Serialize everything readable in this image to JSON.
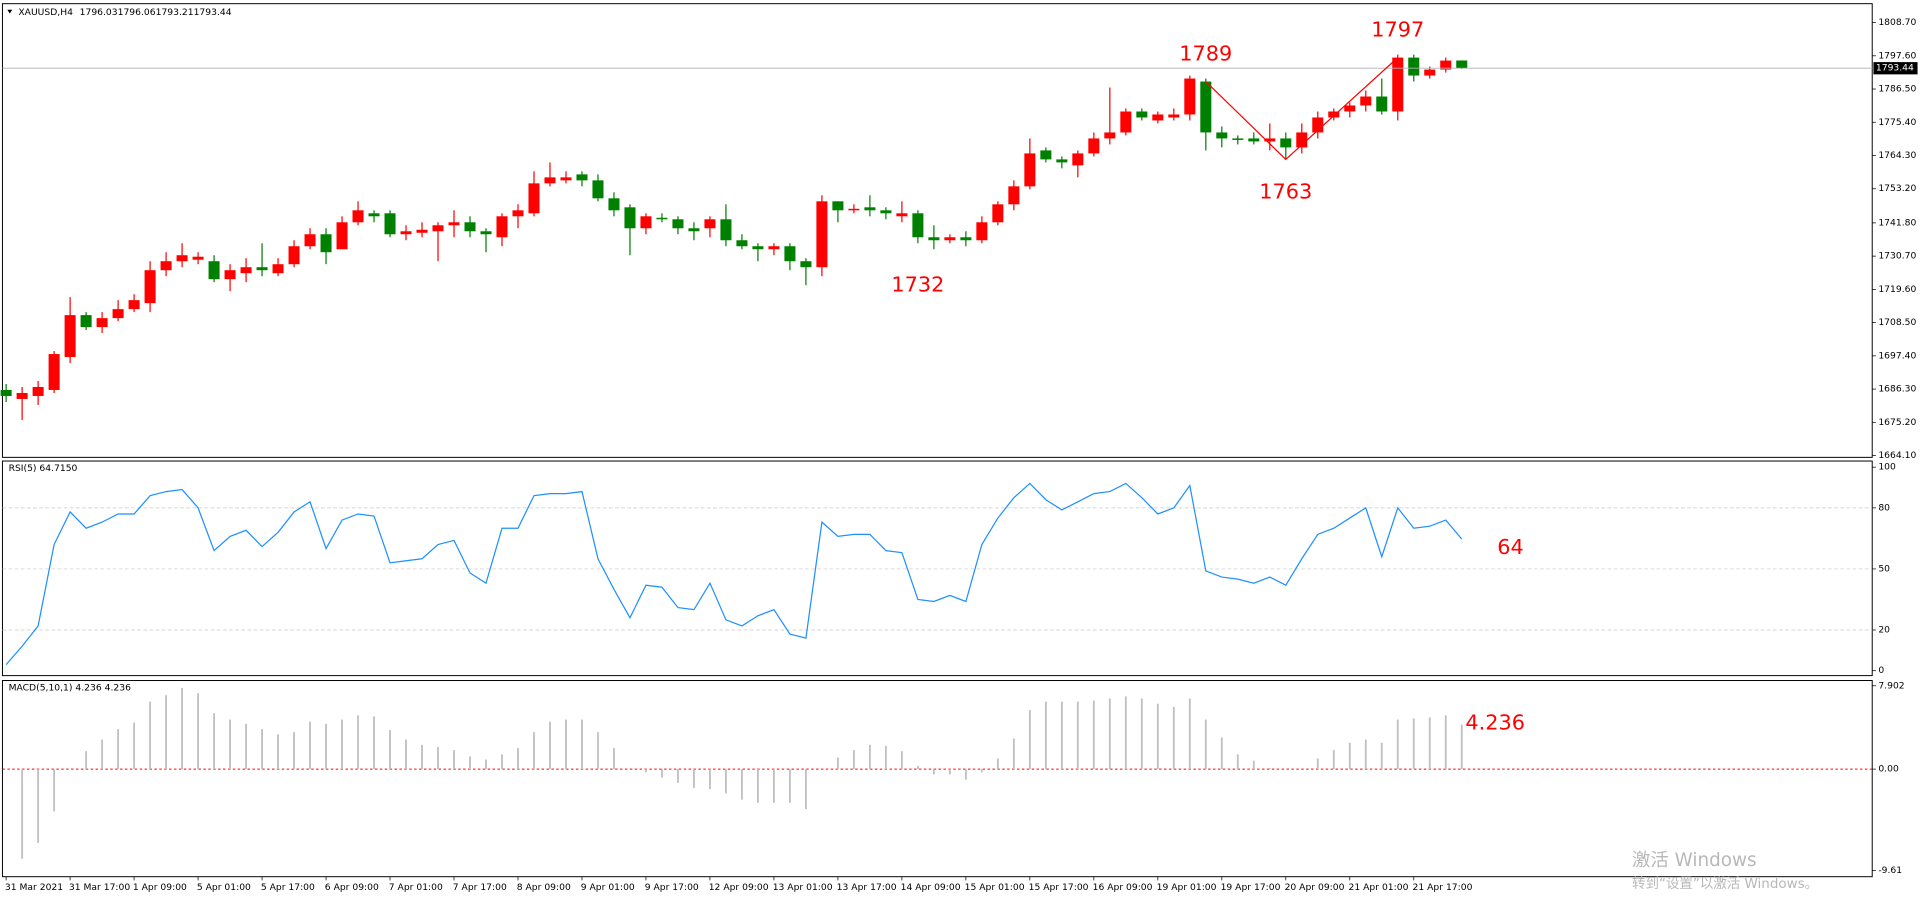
{
  "chart_data": [
    {
      "type": "candlestick",
      "title": "XAUUSD,H4",
      "up_color": "#ff0000",
      "down_color": "#008000",
      "open": [
        1686,
        1683,
        1684,
        1686,
        1697,
        1711,
        1707,
        1710,
        1713,
        1715,
        1726,
        1729,
        1729.5,
        1729,
        1723,
        1725,
        1727,
        1725,
        1728,
        1734,
        1738,
        1733,
        1742,
        1745,
        1745,
        1738,
        1738.5,
        1739,
        1741,
        1742,
        1739,
        1737,
        1744,
        1745,
        1755,
        1756,
        1758,
        1756,
        1750,
        1747,
        1740,
        1743.5,
        1743,
        1740,
        1740,
        1743,
        1736,
        1734,
        1733,
        1734,
        1729,
        1727,
        1749,
        1746,
        1747,
        1746,
        1744,
        1745,
        1737,
        1736,
        1737,
        1736,
        1742,
        1748,
        1754,
        1766,
        1763,
        1761,
        1765,
        1770,
        1772,
        1779,
        1776,
        1777,
        1778,
        1789,
        1772,
        1770,
        1770,
        1769,
        1770,
        1767,
        1772,
        1777,
        1779,
        1781,
        1784,
        1779,
        1797,
        1791,
        1793,
        1796.03
      ],
      "high": [
        1688,
        1687,
        1689,
        1699,
        1717,
        1712,
        1712,
        1716,
        1718,
        1729,
        1732,
        1735,
        1732,
        1731,
        1728,
        1730,
        1735,
        1730,
        1736,
        1740,
        1740,
        1744,
        1749,
        1746,
        1746,
        1741,
        1742,
        1742,
        1746,
        1744,
        1740,
        1745,
        1748,
        1759,
        1762,
        1759,
        1759,
        1758,
        1752,
        1748,
        1745,
        1745,
        1744,
        1742,
        1744,
        1748,
        1738,
        1735,
        1735,
        1735,
        1730,
        1751,
        1749,
        1748,
        1751,
        1747,
        1749,
        1746,
        1741,
        1738,
        1739,
        1744,
        1749,
        1756,
        1770,
        1767,
        1764,
        1766,
        1772,
        1787,
        1780,
        1780,
        1779,
        1780,
        1791,
        1790,
        1774,
        1771,
        1772,
        1775,
        1772,
        1775,
        1779,
        1780,
        1782,
        1786,
        1790,
        1798,
        1798,
        1794,
        1797,
        1796.06
      ],
      "low": [
        1682,
        1676,
        1681,
        1685,
        1695,
        1706,
        1705,
        1709,
        1712,
        1712,
        1724,
        1727,
        1728,
        1722,
        1719,
        1722,
        1724,
        1724,
        1727,
        1733,
        1728,
        1733,
        1741,
        1742,
        1737,
        1736,
        1737,
        1729,
        1737,
        1737,
        1732,
        1734,
        1740,
        1744,
        1754,
        1755,
        1754,
        1749,
        1744,
        1731,
        1738,
        1742,
        1738,
        1736,
        1737,
        1734,
        1733,
        1729,
        1731,
        1726,
        1721,
        1724,
        1742,
        1745,
        1744,
        1743,
        1742,
        1735,
        1733,
        1735,
        1734,
        1735,
        1741,
        1746,
        1753,
        1762,
        1760,
        1757,
        1764,
        1768,
        1771,
        1776,
        1775,
        1776,
        1776,
        1766,
        1767,
        1768,
        1768,
        1766,
        1763,
        1765,
        1770,
        1776,
        1777,
        1779,
        1778,
        1776,
        1789,
        1790,
        1792,
        1793.21
      ],
      "close": [
        1684,
        1685,
        1687,
        1698,
        1711,
        1707,
        1710,
        1713,
        1716,
        1726,
        1729,
        1731,
        1730.5,
        1723,
        1726,
        1727,
        1726,
        1728,
        1734,
        1738,
        1732,
        1742,
        1746,
        1744,
        1738,
        1739,
        1739.5,
        1741,
        1742,
        1739,
        1738,
        1744,
        1746,
        1755,
        1757,
        1757,
        1756,
        1750,
        1746,
        1740,
        1744,
        1743,
        1740,
        1739,
        1743,
        1736,
        1734,
        1733,
        1734,
        1729,
        1727,
        1749,
        1746,
        1746.5,
        1746,
        1745,
        1745,
        1737,
        1736,
        1737,
        1736,
        1742,
        1748,
        1754,
        1765,
        1763,
        1762,
        1765,
        1770,
        1772,
        1779,
        1777,
        1778,
        1778,
        1790,
        1772,
        1770,
        1769.5,
        1769,
        1770,
        1767,
        1772,
        1777,
        1779,
        1781,
        1784,
        1779,
        1797,
        1791,
        1793,
        1796,
        1793.44
      ],
      "ylim": [
        1663.5,
        1815
      ],
      "yticks": [
        {
          "value": 1808.7,
          "label": "1808.70"
        },
        {
          "value": 1797.6,
          "label": "1797.60"
        },
        {
          "value": 1786.5,
          "label": "1786.50"
        },
        {
          "value": 1775.4,
          "label": "1775.40"
        },
        {
          "value": 1764.3,
          "label": "1764.30"
        },
        {
          "value": 1753.2,
          "label": "1753.20"
        },
        {
          "value": 1741.8,
          "label": "1741.80"
        },
        {
          "value": 1730.7,
          "label": "1730.70"
        },
        {
          "value": 1719.6,
          "label": "1719.60"
        },
        {
          "value": 1708.5,
          "label": "1708.50"
        },
        {
          "value": 1697.4,
          "label": "1697.40"
        },
        {
          "value": 1686.3,
          "label": "1686.30"
        },
        {
          "value": 1675.2,
          "label": "1675.20"
        },
        {
          "value": 1664.1,
          "label": "1664.10"
        }
      ],
      "zigzag": {
        "color": "#ff0000",
        "bars": [
          75,
          80,
          87
        ],
        "prices": [
          1789,
          1763,
          1797
        ]
      },
      "swing_labels": [
        {
          "bar": 57,
          "value": 1732
        }
      ]
    },
    {
      "type": "line",
      "title": "RSI(5) 64.7150",
      "color": "#1e90ff",
      "annotation": "64",
      "values": [
        3,
        12,
        22,
        62,
        78,
        70,
        73,
        77,
        77,
        86,
        88,
        89,
        80,
        59,
        66,
        69,
        61,
        68,
        78,
        83,
        60,
        74,
        77,
        76,
        53,
        54,
        55,
        62,
        64,
        48,
        43,
        70,
        70,
        86,
        87,
        87,
        88,
        55,
        40,
        26,
        42,
        41,
        31,
        30,
        43,
        25,
        22,
        27,
        30,
        18,
        16,
        73,
        66,
        67,
        67,
        59,
        58,
        35,
        34,
        37,
        34,
        62,
        75,
        85,
        92,
        84,
        79,
        83,
        87,
        88,
        92,
        85,
        77,
        80,
        91,
        49,
        46,
        45,
        43,
        46,
        42,
        55,
        67,
        70,
        75,
        80,
        56,
        80,
        70,
        71,
        74,
        64.715
      ],
      "ylim": [
        0,
        100
      ],
      "yticks": [
        100,
        80,
        50,
        20,
        0
      ],
      "levels": [
        80,
        50,
        20
      ]
    },
    {
      "type": "bar",
      "title": "MACD(5,10,1) 4.236 4.236",
      "color": "#c0c0c0",
      "annotation": "4.236",
      "values": [
        null,
        -8.5,
        -7,
        -4,
        0,
        1.7,
        2.8,
        3.8,
        4.4,
        6.4,
        7.0,
        7.7,
        7.2,
        5.3,
        4.7,
        4.3,
        3.8,
        3.3,
        3.5,
        4.5,
        4.3,
        4.7,
        5.1,
        5.0,
        3.7,
        2.8,
        2.3,
        2.1,
        1.8,
        1.2,
        0.9,
        1.4,
        2.0,
        3.5,
        4.5,
        4.7,
        4.7,
        3.5,
        2.0,
        0.0,
        -0.3,
        -0.8,
        -1.3,
        -1.8,
        -1.9,
        -2.3,
        -2.9,
        -3.2,
        -3.2,
        -3.2,
        -3.8,
        0.0,
        1.1,
        1.8,
        2.3,
        2.2,
        1.7,
        0.3,
        -0.5,
        -0.5,
        -1.0,
        -0.3,
        1.0,
        2.9,
        5.6,
        6.4,
        6.4,
        6.4,
        6.5,
        6.7,
        6.9,
        6.7,
        6.2,
        5.9,
        6.7,
        4.7,
        3.0,
        1.4,
        0.8,
        0.1,
        0.0,
        0.0,
        1.0,
        1.8,
        2.5,
        2.8,
        2.5,
        4.7,
        4.8,
        4.9,
        5.1,
        4.236
      ],
      "categories": [
        "31 Mar 2021",
        null,
        null,
        null,
        "31 Mar 17:00",
        null,
        null,
        null,
        "1 Apr 09:00",
        null,
        null,
        null,
        "5 Apr 01:00",
        null,
        null,
        null,
        "5 Apr 17:00",
        null,
        null,
        null,
        "6 Apr 09:00",
        null,
        null,
        null,
        "7 Apr 01:00",
        null,
        null,
        null,
        "7 Apr 17:00",
        null,
        null,
        null,
        "8 Apr 09:00",
        null,
        null,
        null,
        "9 Apr 01:00",
        null,
        null,
        null,
        "9 Apr 17:00",
        null,
        null,
        null,
        "12 Apr 09:00",
        null,
        null,
        null,
        "13 Apr 01:00",
        null,
        null,
        null,
        "13 Apr 17:00",
        null,
        null,
        null,
        "14 Apr 09:00",
        null,
        null,
        null,
        "15 Apr 01:00",
        null,
        null,
        null,
        "15 Apr 17:00",
        null,
        null,
        null,
        "16 Apr 09:00",
        null,
        null,
        null,
        "19 Apr 01:00",
        null,
        null,
        null,
        "19 Apr 17:00",
        null,
        null,
        null,
        "20 Apr 09:00",
        null,
        null,
        null,
        "21 Apr 01:00",
        null,
        null,
        null,
        "21 Apr 17:00",
        null,
        null,
        null
      ],
      "ylim": [
        -10.2,
        8.4
      ],
      "yticks": [
        7.902,
        {
          "value": 0,
          "label": "0.00"
        },
        -9.61
      ],
      "zero_color": "#ff0000"
    }
  ],
  "watermark": {
    "line1": "激活 Windows",
    "line2": "转到“设置”以激活 Windows。"
  }
}
